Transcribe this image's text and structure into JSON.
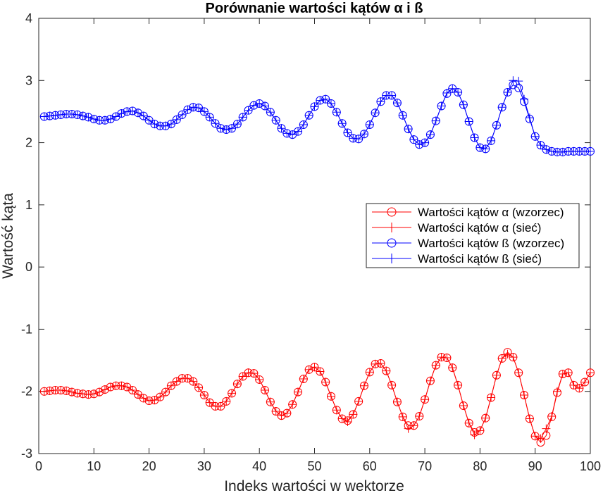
{
  "chart_data": {
    "type": "line",
    "title": "Porównanie wartości kątów α i ß",
    "xlabel": "Indeks wartości w wektorze",
    "ylabel": "Wartość kąta",
    "xlim": [
      0,
      100
    ],
    "ylim": [
      -3,
      4
    ],
    "xticks": [
      0,
      10,
      20,
      30,
      40,
      50,
      60,
      70,
      80,
      90,
      100
    ],
    "yticks": [
      -3,
      -2,
      -1,
      0,
      1,
      2,
      3,
      4
    ],
    "grid": false,
    "legend_position": "center-right",
    "x": [
      1,
      2,
      3,
      4,
      5,
      6,
      7,
      8,
      9,
      10,
      11,
      12,
      13,
      14,
      15,
      16,
      17,
      18,
      19,
      20,
      21,
      22,
      23,
      24,
      25,
      26,
      27,
      28,
      29,
      30,
      31,
      32,
      33,
      34,
      35,
      36,
      37,
      38,
      39,
      40,
      41,
      42,
      43,
      44,
      45,
      46,
      47,
      48,
      49,
      50,
      51,
      52,
      53,
      54,
      55,
      56,
      57,
      58,
      59,
      60,
      61,
      62,
      63,
      64,
      65,
      66,
      67,
      68,
      69,
      70,
      71,
      72,
      73,
      74,
      75,
      76,
      77,
      78,
      79,
      80,
      81,
      82,
      83,
      84,
      85,
      86,
      87,
      88,
      89,
      90,
      91,
      92,
      93,
      94,
      95,
      96,
      97,
      98,
      99,
      100
    ],
    "series": [
      {
        "name": "Wartości kątów α (wzorzec)",
        "color": "#ff0000",
        "marker": "circle",
        "values": [
          -2.0,
          -1.99,
          -1.98,
          -1.98,
          -1.99,
          -2.01,
          -2.03,
          -2.04,
          -2.05,
          -2.04,
          -2.01,
          -1.97,
          -1.93,
          -1.91,
          -1.91,
          -1.93,
          -1.98,
          -2.05,
          -2.11,
          -2.15,
          -2.14,
          -2.09,
          -2.01,
          -1.91,
          -1.84,
          -1.79,
          -1.79,
          -1.84,
          -1.94,
          -2.06,
          -2.18,
          -2.24,
          -2.24,
          -2.16,
          -2.03,
          -1.88,
          -1.76,
          -1.7,
          -1.71,
          -1.81,
          -1.98,
          -2.17,
          -2.32,
          -2.39,
          -2.35,
          -2.21,
          -2.01,
          -1.8,
          -1.65,
          -1.61,
          -1.68,
          -1.85,
          -2.08,
          -2.3,
          -2.44,
          -2.47,
          -2.37,
          -2.16,
          -1.91,
          -1.69,
          -1.56,
          -1.55,
          -1.67,
          -1.9,
          -2.17,
          -2.41,
          -2.55,
          -2.55,
          -2.4,
          -2.13,
          -1.83,
          -1.58,
          -1.45,
          -1.46,
          -1.62,
          -1.9,
          -2.23,
          -2.51,
          -2.66,
          -2.63,
          -2.43,
          -2.1,
          -1.74,
          -1.47,
          -1.37,
          -1.45,
          -1.7,
          -2.06,
          -2.44,
          -2.72,
          -2.82,
          -2.71,
          -2.41,
          -2.02,
          -1.72,
          -1.7,
          -1.9,
          -1.95,
          -1.85,
          -1.7
        ]
      },
      {
        "name": "Wartości kątów α (sieć)",
        "color": "#ff0000",
        "marker": "plus",
        "values": [
          -2.0,
          -1.99,
          -1.98,
          -1.98,
          -1.99,
          -2.01,
          -2.03,
          -2.04,
          -2.05,
          -2.04,
          -2.01,
          -1.97,
          -1.93,
          -1.91,
          -1.91,
          -1.93,
          -1.98,
          -2.05,
          -2.11,
          -2.15,
          -2.14,
          -2.09,
          -2.01,
          -1.91,
          -1.84,
          -1.79,
          -1.79,
          -1.84,
          -1.94,
          -2.06,
          -2.18,
          -2.24,
          -2.24,
          -2.16,
          -2.03,
          -1.88,
          -1.76,
          -1.7,
          -1.71,
          -1.81,
          -1.98,
          -2.17,
          -2.32,
          -2.39,
          -2.35,
          -2.21,
          -2.01,
          -1.8,
          -1.65,
          -1.61,
          -1.68,
          -1.85,
          -2.08,
          -2.3,
          -2.44,
          -2.49,
          -2.37,
          -2.16,
          -1.91,
          -1.69,
          -1.56,
          -1.55,
          -1.67,
          -1.9,
          -2.17,
          -2.41,
          -2.6,
          -2.55,
          -2.4,
          -2.13,
          -1.83,
          -1.58,
          -1.45,
          -1.46,
          -1.62,
          -1.9,
          -2.23,
          -2.51,
          -2.7,
          -2.63,
          -2.43,
          -2.1,
          -1.74,
          -1.47,
          -1.4,
          -1.45,
          -1.7,
          -2.06,
          -2.44,
          -2.72,
          -2.76,
          -2.6,
          -2.4,
          -2.0,
          -1.72,
          -1.7,
          -1.9,
          -1.95,
          -1.85,
          -1.7
        ]
      },
      {
        "name": "Wartości kątów ß (wzorzec)",
        "color": "#0000ff",
        "marker": "circle",
        "values": [
          2.42,
          2.43,
          2.44,
          2.45,
          2.46,
          2.46,
          2.45,
          2.43,
          2.41,
          2.38,
          2.36,
          2.36,
          2.38,
          2.42,
          2.47,
          2.5,
          2.51,
          2.48,
          2.43,
          2.36,
          2.3,
          2.27,
          2.27,
          2.3,
          2.37,
          2.45,
          2.53,
          2.57,
          2.56,
          2.5,
          2.41,
          2.31,
          2.23,
          2.21,
          2.23,
          2.3,
          2.41,
          2.52,
          2.6,
          2.63,
          2.59,
          2.49,
          2.36,
          2.23,
          2.15,
          2.13,
          2.18,
          2.29,
          2.44,
          2.58,
          2.68,
          2.7,
          2.63,
          2.49,
          2.31,
          2.16,
          2.07,
          2.06,
          2.14,
          2.29,
          2.48,
          2.66,
          2.76,
          2.76,
          2.64,
          2.44,
          2.22,
          2.05,
          1.97,
          2.0,
          2.13,
          2.35,
          2.59,
          2.79,
          2.87,
          2.81,
          2.61,
          2.34,
          2.08,
          1.92,
          1.9,
          2.03,
          2.28,
          2.57,
          2.81,
          2.93,
          2.88,
          2.66,
          2.38,
          2.1,
          1.96,
          1.89,
          1.86,
          1.85,
          1.85,
          1.86,
          1.86,
          1.86,
          1.86,
          1.86
        ]
      },
      {
        "name": "Wartości kątów ß (sieć)",
        "color": "#0000ff",
        "marker": "plus",
        "values": [
          2.42,
          2.43,
          2.44,
          2.45,
          2.46,
          2.46,
          2.45,
          2.43,
          2.41,
          2.38,
          2.36,
          2.36,
          2.38,
          2.42,
          2.47,
          2.5,
          2.51,
          2.48,
          2.43,
          2.36,
          2.3,
          2.27,
          2.27,
          2.3,
          2.37,
          2.45,
          2.53,
          2.57,
          2.56,
          2.5,
          2.41,
          2.31,
          2.23,
          2.21,
          2.23,
          2.3,
          2.41,
          2.52,
          2.6,
          2.63,
          2.59,
          2.49,
          2.36,
          2.23,
          2.15,
          2.13,
          2.18,
          2.29,
          2.44,
          2.58,
          2.68,
          2.7,
          2.63,
          2.49,
          2.31,
          2.16,
          2.07,
          2.06,
          2.14,
          2.29,
          2.48,
          2.66,
          2.76,
          2.76,
          2.64,
          2.44,
          2.22,
          2.05,
          1.97,
          2.0,
          2.13,
          2.35,
          2.59,
          2.8,
          2.87,
          2.81,
          2.61,
          2.34,
          2.08,
          1.92,
          1.9,
          2.03,
          2.28,
          2.57,
          2.81,
          3.0,
          2.99,
          2.7,
          2.4,
          2.1,
          1.96,
          1.89,
          1.86,
          1.85,
          1.85,
          1.86,
          1.86,
          1.86,
          1.86,
          1.86
        ]
      }
    ]
  }
}
